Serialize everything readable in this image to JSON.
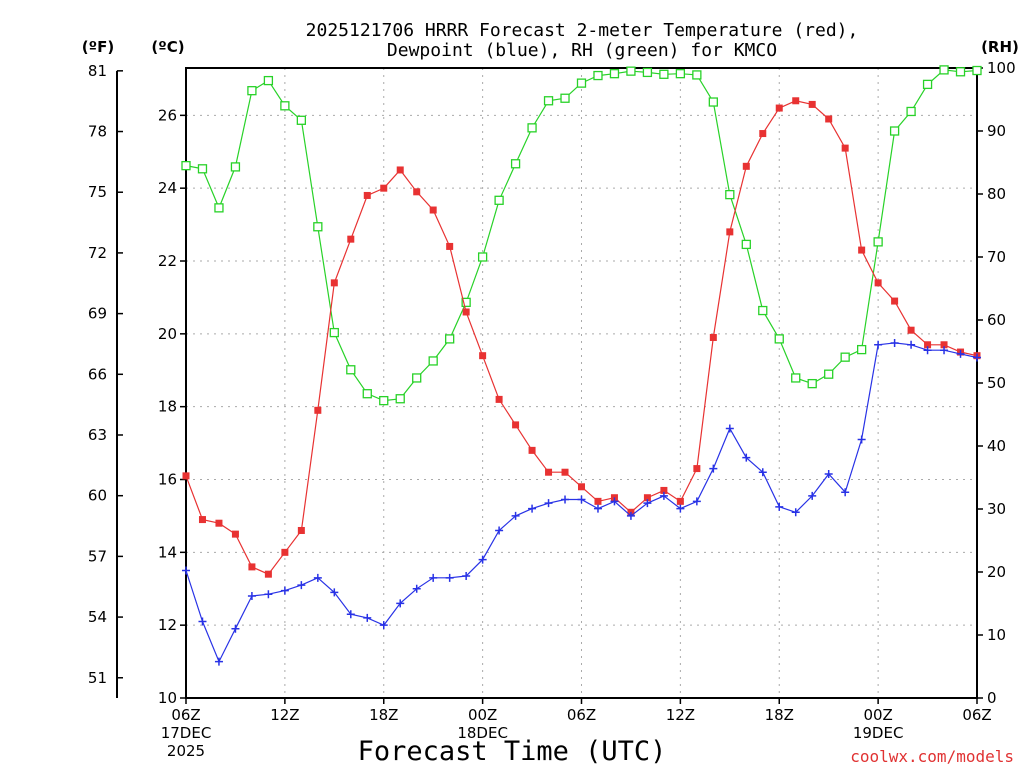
{
  "title_line1": "2025121706 HRRR Forecast 2-meter Temperature (red),",
  "title_line2": "Dewpoint (blue), RH (green) for KMCO",
  "unit_f": "(ºF)",
  "unit_c": "(ºC)",
  "unit_rh": "(RH)",
  "credit": "coolwx.com/models",
  "colors": {
    "temperature": "#e83232",
    "dewpoint": "#2832e6",
    "rh": "#28d228",
    "grid": "#aaaaaa",
    "credit": "#e03232"
  },
  "chart_data": {
    "type": "line",
    "title": "2025121706 HRRR Forecast 2-meter Temperature (red), Dewpoint (blue), RH (green) for KMCO",
    "xlabel": "Forecast Time (UTC)",
    "x_hours": [
      0,
      1,
      2,
      3,
      4,
      5,
      6,
      7,
      8,
      9,
      10,
      11,
      12,
      13,
      14,
      15,
      16,
      17,
      18,
      19,
      20,
      21,
      22,
      23,
      24,
      25,
      26,
      27,
      28,
      29,
      30,
      31,
      32,
      33,
      34,
      35,
      36,
      37,
      38,
      39,
      40,
      41,
      42,
      43,
      44,
      45,
      46,
      47,
      48
    ],
    "xlim": [
      0,
      48
    ],
    "xticks": [
      {
        "hour": 0,
        "lines": [
          "06Z",
          "17DEC",
          "2025"
        ]
      },
      {
        "hour": 6,
        "lines": [
          "12Z"
        ]
      },
      {
        "hour": 12,
        "lines": [
          "18Z"
        ]
      },
      {
        "hour": 18,
        "lines": [
          "00Z",
          "18DEC"
        ]
      },
      {
        "hour": 24,
        "lines": [
          "06Z"
        ]
      },
      {
        "hour": 30,
        "lines": [
          "12Z"
        ]
      },
      {
        "hour": 36,
        "lines": [
          "18Z"
        ]
      },
      {
        "hour": 42,
        "lines": [
          "00Z",
          "19DEC"
        ]
      },
      {
        "hour": 48,
        "lines": [
          "06Z"
        ]
      }
    ],
    "left_axis_c": {
      "label": "(ºC)",
      "range": [
        10,
        27.3
      ],
      "ticks": [
        10,
        12,
        14,
        16,
        18,
        20,
        22,
        24,
        26
      ]
    },
    "left_axis_f": {
      "label": "(ºF)",
      "ticks": [
        51,
        54,
        57,
        60,
        63,
        66,
        69,
        72,
        75,
        78,
        81
      ]
    },
    "right_axis_rh": {
      "label": "(RH)",
      "range": [
        0,
        100
      ],
      "ticks": [
        0,
        10,
        20,
        30,
        40,
        50,
        60,
        70,
        80,
        90,
        100
      ]
    },
    "series": [
      {
        "name": "Temperature",
        "unit": "C",
        "axis": "c",
        "marker": "filled-square",
        "color": "#e83232",
        "values": [
          16.1,
          14.9,
          14.8,
          14.5,
          13.6,
          13.4,
          14.0,
          14.6,
          17.9,
          21.4,
          22.6,
          23.8,
          24.0,
          24.5,
          23.9,
          23.4,
          22.4,
          20.6,
          19.4,
          18.2,
          17.5,
          16.8,
          16.2,
          16.2,
          15.8,
          15.4,
          15.5,
          15.1,
          15.5,
          15.7,
          15.4,
          16.3,
          19.9,
          22.8,
          24.6,
          25.5,
          26.2,
          26.4,
          26.3,
          25.9,
          25.1,
          22.3,
          21.4,
          20.9,
          20.1,
          19.7,
          19.7,
          19.5,
          19.4
        ]
      },
      {
        "name": "Dewpoint",
        "unit": "C",
        "axis": "c",
        "marker": "plus",
        "color": "#2832e6",
        "values": [
          13.5,
          12.1,
          11.0,
          11.9,
          12.8,
          12.85,
          12.95,
          13.1,
          13.3,
          12.9,
          12.3,
          12.2,
          12.0,
          12.6,
          13.0,
          13.3,
          13.3,
          13.35,
          13.8,
          14.6,
          15.0,
          15.2,
          15.35,
          15.45,
          15.45,
          15.2,
          15.4,
          15.0,
          15.35,
          15.55,
          15.2,
          15.4,
          16.3,
          17.4,
          16.6,
          16.2,
          15.25,
          15.1,
          15.55,
          16.15,
          15.65,
          17.1,
          19.7,
          19.75,
          19.7,
          19.55,
          19.55,
          19.45,
          19.35
        ]
      },
      {
        "name": "RH",
        "unit": "%",
        "axis": "rh",
        "marker": "open-square",
        "color": "#28d228",
        "values": [
          84.5,
          84.0,
          77.8,
          84.3,
          96.4,
          98.0,
          94.0,
          91.7,
          74.8,
          58.0,
          52.1,
          48.3,
          47.2,
          47.5,
          50.8,
          53.5,
          57.0,
          62.8,
          70.0,
          79.0,
          84.8,
          90.5,
          94.8,
          95.2,
          97.6,
          98.8,
          99.1,
          99.5,
          99.3,
          99.0,
          99.1,
          98.9,
          94.6,
          79.9,
          72.0,
          61.5,
          57.0,
          50.8,
          49.9,
          51.4,
          54.1,
          55.3,
          72.4,
          90.0,
          93.1,
          97.4,
          99.7,
          99.4,
          99.6
        ]
      }
    ]
  }
}
